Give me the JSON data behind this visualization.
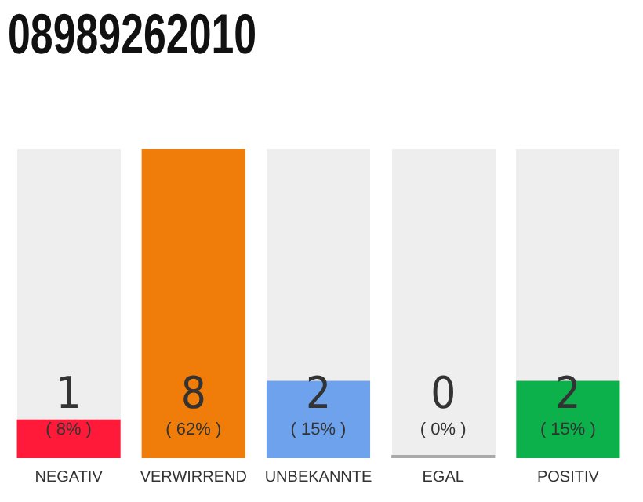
{
  "chart_data": {
    "type": "bar",
    "title": "08989262010",
    "categories": [
      "NEGATIV",
      "VERWIRREND",
      "UNBEKANNTE",
      "EGAL",
      "POSITIV"
    ],
    "values": [
      1,
      8,
      2,
      0,
      2
    ],
    "colors": [
      "#ff1a3a",
      "#f07d0a",
      "#6ea2ec",
      "#aaaaaa",
      "#0db14b"
    ],
    "value_labels": [
      "1\n( 8% )",
      "8\n( 62% )",
      "2\n( 15% )",
      "0\n( 0% )",
      "2\n( 15% )"
    ],
    "ylim": [
      0,
      8
    ],
    "tick_labels": "x",
    "grid": false,
    "legend": false
  }
}
